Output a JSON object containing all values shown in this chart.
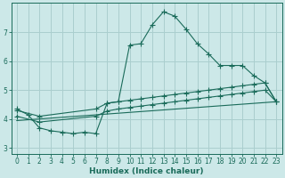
{
  "xlabel": "Humidex (Indice chaleur)",
  "background_color": "#cce8e8",
  "grid_color": "#aacece",
  "line_color": "#1a6b5a",
  "xlim": [
    -0.5,
    23.5
  ],
  "ylim": [
    2.8,
    8.0
  ],
  "xticks": [
    0,
    1,
    2,
    3,
    4,
    5,
    6,
    7,
    8,
    9,
    10,
    11,
    12,
    13,
    14,
    15,
    16,
    17,
    18,
    19,
    20,
    21,
    22,
    23
  ],
  "yticks": [
    3,
    4,
    5,
    6,
    7
  ],
  "line1_x": [
    0,
    1,
    2,
    3,
    4,
    5,
    6,
    7,
    8,
    9,
    10,
    11,
    12,
    13,
    14,
    15,
    16,
    17,
    18,
    19,
    20,
    21,
    22,
    23
  ],
  "line1_y": [
    4.35,
    4.15,
    3.7,
    3.6,
    3.55,
    3.5,
    3.55,
    3.5,
    4.55,
    4.6,
    6.55,
    6.6,
    7.25,
    7.7,
    7.55,
    7.1,
    6.6,
    6.25,
    5.85,
    5.85,
    5.85,
    5.5,
    5.25,
    4.6
  ],
  "line2_x": [
    0,
    2,
    7,
    8,
    9,
    10,
    11,
    12,
    13,
    14,
    15,
    16,
    17,
    18,
    19,
    20,
    21,
    22,
    23
  ],
  "line2_y": [
    4.3,
    4.1,
    4.35,
    4.55,
    4.6,
    4.65,
    4.7,
    4.75,
    4.8,
    4.85,
    4.9,
    4.95,
    5.0,
    5.05,
    5.1,
    5.15,
    5.2,
    5.25,
    4.6
  ],
  "line3_x": [
    0,
    2,
    7,
    8,
    9,
    10,
    11,
    12,
    13,
    14,
    15,
    16,
    17,
    18,
    19,
    20,
    21,
    22,
    23
  ],
  "line3_y": [
    4.1,
    3.9,
    4.1,
    4.28,
    4.35,
    4.4,
    4.45,
    4.5,
    4.55,
    4.6,
    4.65,
    4.7,
    4.75,
    4.8,
    4.85,
    4.9,
    4.95,
    5.0,
    4.6
  ],
  "line4_x": [
    0,
    23
  ],
  "line4_y": [
    3.95,
    4.6
  ]
}
